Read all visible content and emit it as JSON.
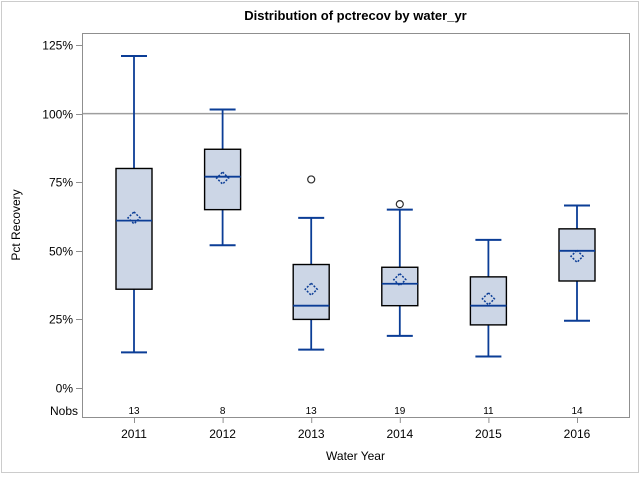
{
  "chart_data": {
    "type": "box",
    "title": "Distribution of pctrecov by water_yr",
    "xlabel": "Water Year",
    "ylabel": "Pct Recovery",
    "nobs_label": "Nobs",
    "y_ticks": [
      0,
      25,
      50,
      75,
      100,
      125
    ],
    "y_tick_suffix": "%",
    "ylim": [
      -10.5,
      129.5
    ],
    "reference_line": 100,
    "grid": "off",
    "legend": "none",
    "categories": [
      "2011",
      "2012",
      "2013",
      "2014",
      "2015",
      "2016"
    ],
    "series": [
      {
        "category": "2011",
        "n": 13,
        "whisker_low": 13,
        "q1": 36,
        "median": 61,
        "mean": 62,
        "q3": 80,
        "whisker_high": 121,
        "outliers": []
      },
      {
        "category": "2012",
        "n": 8,
        "whisker_low": 52,
        "q1": 65,
        "median": 77,
        "mean": 76.5,
        "q3": 87,
        "whisker_high": 101.5,
        "outliers": []
      },
      {
        "category": "2013",
        "n": 13,
        "whisker_low": 14,
        "q1": 25,
        "median": 30,
        "mean": 36,
        "q3": 45,
        "whisker_high": 62,
        "outliers": [
          76
        ]
      },
      {
        "category": "2014",
        "n": 19,
        "whisker_low": 19,
        "q1": 30,
        "median": 38,
        "mean": 39.5,
        "q3": 44,
        "whisker_high": 65,
        "outliers": [
          67
        ]
      },
      {
        "category": "2015",
        "n": 11,
        "whisker_low": 11.5,
        "q1": 23,
        "median": 30,
        "mean": 32.5,
        "q3": 40.5,
        "whisker_high": 54,
        "outliers": []
      },
      {
        "category": "2016",
        "n": 14,
        "whisker_low": 24.5,
        "q1": 39,
        "median": 50,
        "mean": 48,
        "q3": 58,
        "whisker_high": 66.5,
        "outliers": []
      }
    ],
    "colors": {
      "box_fill": "#ccd6e6",
      "box_stroke": "#000000",
      "line": "#0b3d96",
      "reference_line": "#9e9e9e",
      "axis": "#8f8f8f",
      "outlier": "#2e2e2e",
      "frame": "#cccccc",
      "text": "#000000"
    }
  }
}
